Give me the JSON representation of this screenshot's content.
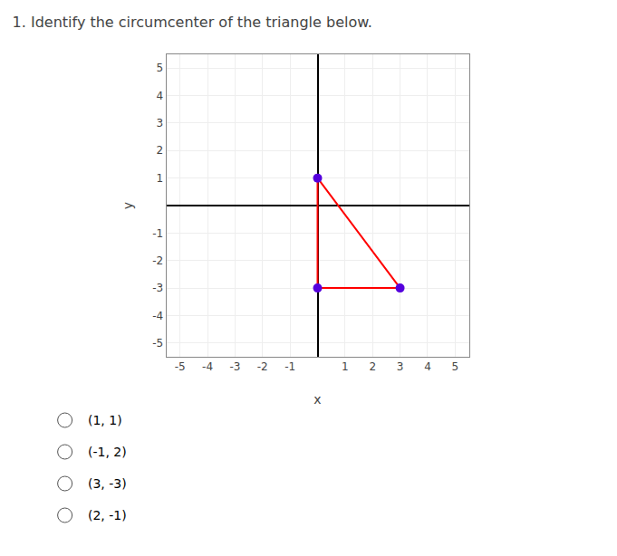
{
  "chart_data": {
    "type": "line",
    "title": "1. Identify the circumcenter of the triangle below.",
    "xlabel": "x",
    "ylabel": "y",
    "series": [
      {
        "type": "line",
        "color": "red",
        "line_style": "solid",
        "x": [
          0,
          0,
          3,
          0
        ],
        "values": [
          1,
          -3,
          -3,
          1
        ]
      },
      {
        "type": "scatter",
        "color": "#5500dd",
        "marker": "circle",
        "x": [
          0,
          0,
          3
        ],
        "values": [
          1,
          -3,
          -3
        ]
      }
    ],
    "xlim": [
      -5.5,
      5.5
    ],
    "ylim": [
      -5.5,
      5.5
    ],
    "xticks": [
      -5,
      -4,
      -3,
      -2,
      -1,
      1,
      2,
      3,
      4,
      5
    ],
    "yticks": [
      -5,
      -4,
      -3,
      -2,
      -1,
      1,
      2,
      3,
      4,
      5
    ],
    "grid": true,
    "annotations": [
      "(1, 1)",
      "(-1, 2)",
      "(3, -3)",
      "(2, -1)"
    ]
  }
}
